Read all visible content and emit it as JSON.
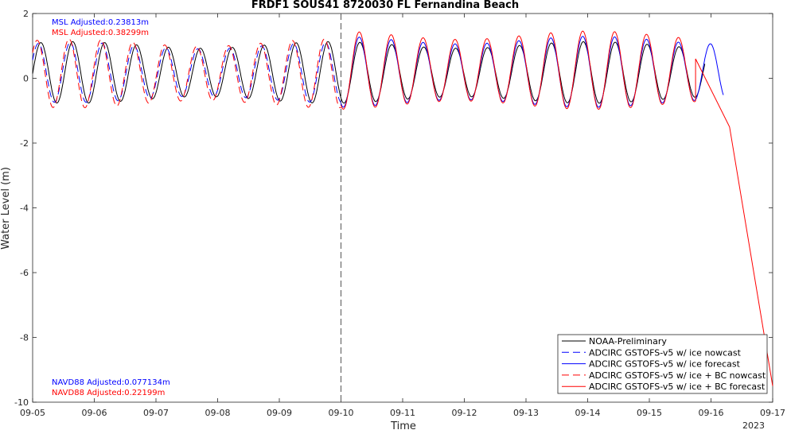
{
  "chart_data": {
    "type": "line",
    "title": "FRDF1 SOUS41 8720030 FL Fernandina Beach",
    "xlabel": "Time",
    "ylabel": "Water Level (m)",
    "xlim": [
      0,
      12
    ],
    "ylim": [
      -10,
      2
    ],
    "x_ticks": [
      0,
      1,
      2,
      3,
      4,
      5,
      6,
      7,
      8,
      9,
      10,
      11,
      12
    ],
    "x_tick_labels": [
      "09-05",
      "09-06",
      "09-07",
      "09-08",
      "09-09",
      "09-10",
      "09-11",
      "09-12",
      "09-13",
      "09-14",
      "09-15",
      "09-16",
      "09-17"
    ],
    "x_year_label": "2023",
    "y_ticks": [
      2,
      0,
      -2,
      -4,
      -6,
      -8,
      -10
    ],
    "y_tick_labels": [
      "2",
      "0",
      "-2",
      "-4",
      "-6",
      "-8",
      "-10"
    ],
    "nowcast_forecast_divider_x": 5.0,
    "annotations": {
      "msl_gstofs": {
        "text": "MSL Adjusted:0.23813m",
        "color": "#0000ff"
      },
      "msl_bc": {
        "text": "MSL Adjusted:0.38299m",
        "color": "#ff0000"
      },
      "navd_gstofs": {
        "text": "NAVD88 Adjusted:0.077134m",
        "color": "#0000ff"
      },
      "navd_bc": {
        "text": "NAVD88 Adjusted:0.22199m",
        "color": "#ff0000"
      }
    },
    "legend_position": "bottom-right",
    "tide_period_days": 0.5175,
    "series": [
      {
        "name": "NOAA-Preliminary",
        "color": "#000000",
        "style": "solid",
        "x_range": [
          0,
          10.9
        ],
        "mean": 0.18,
        "amplitude": 0.85,
        "phase_shift": 0.0
      },
      {
        "name": "ADCIRC GSTOFS-v5 w/ ice nowcast",
        "color": "#0000ff",
        "style": "dashed",
        "x_range": [
          0,
          5.0
        ],
        "mean": 0.18,
        "amplitude": 0.83,
        "phase_shift": -0.04
      },
      {
        "name": "ADCIRC GSTOFS-v5 w/ ice forecast",
        "color": "#0000ff",
        "style": "solid",
        "x_range": [
          5.0,
          11.2
        ],
        "mean": 0.2,
        "amplitude": 0.98,
        "phase_shift": -0.01
      },
      {
        "name": "ADCIRC GSTOFS-v5 w/ ice + BC nowcast",
        "color": "#ff0000",
        "style": "dashed",
        "x_range": [
          0,
          5.0
        ],
        "mean": 0.15,
        "amplitude": 0.95,
        "phase_shift": -0.06
      },
      {
        "name": "ADCIRC GSTOFS-v5 w/ ice + BC forecast",
        "color": "#ff0000",
        "style": "solid",
        "x_range": [
          5.0,
          10.75
        ],
        "mean": 0.25,
        "amplitude": 1.08,
        "phase_shift": -0.01,
        "tail": [
          [
            10.75,
            0.6
          ],
          [
            11.3,
            -1.5
          ],
          [
            12.0,
            -9.5
          ]
        ]
      }
    ]
  }
}
